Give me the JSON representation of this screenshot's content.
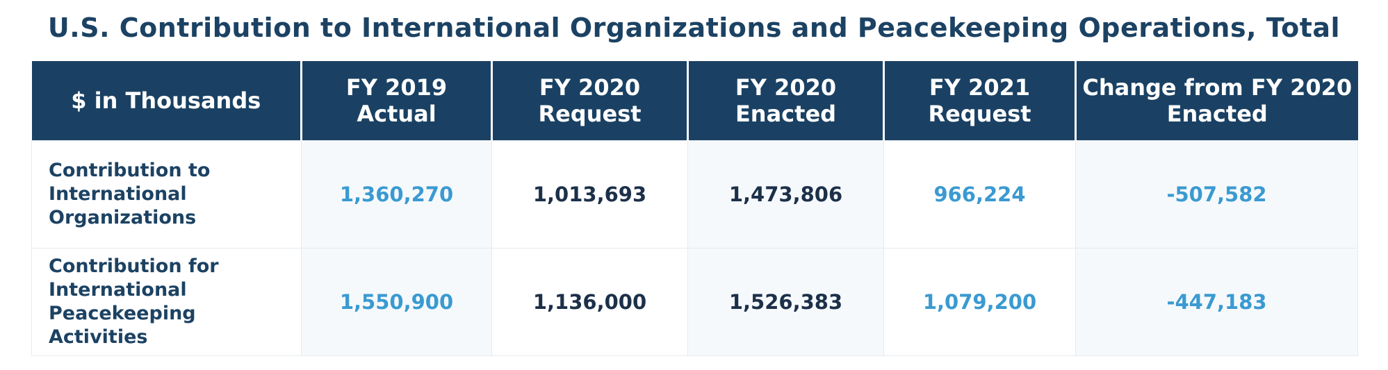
{
  "chart_data": {
    "type": "table",
    "title": "U.S. Contribution to International Organizations and Peacekeeping Operations, Total",
    "columns": [
      "$ in Thousands",
      "FY 2019 Actual",
      "FY 2020 Request",
      "FY 2020 Enacted",
      "FY 2021 Request",
      "Change from FY 2020 Enacted"
    ],
    "rows": [
      {
        "label": "Contribution to International Organizations",
        "values": [
          "1,360,270",
          "1,013,693",
          "1,473,806",
          "966,224",
          "-507,582"
        ]
      },
      {
        "label": "Contribution for International Peacekeeping Activities",
        "values": [
          "1,550,900",
          "1,136,000",
          "1,526,383",
          "1,079,200",
          "-447,183"
        ]
      }
    ]
  },
  "colors": {
    "header_bg": "#1a4163",
    "title_text": "#1c4263",
    "accent_blue": "#3a9ad1",
    "dark_text": "#1c3049",
    "shaded_cell": "#f6f9fc"
  }
}
